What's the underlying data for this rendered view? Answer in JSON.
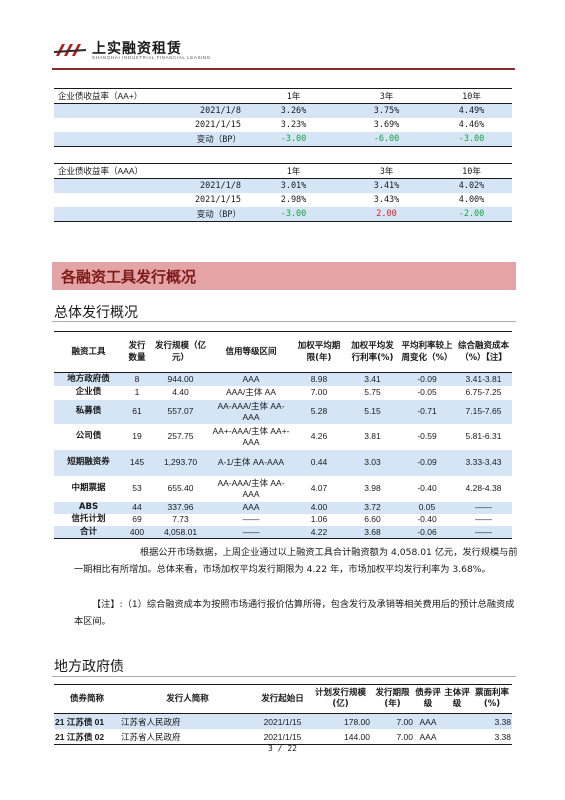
{
  "header": {
    "company_cn": "上实融资租赁",
    "company_en": "SHANGHAI INDUSTRIAL FINANCIAL LEASING"
  },
  "yield_tables": [
    {
      "label": "企业债收益率（AA+）",
      "tenors": [
        "1年",
        "3年",
        "10年"
      ],
      "rows": [
        {
          "date": "2021/1/8",
          "values": [
            "3.26%",
            "3.75%",
            "4.49%"
          ]
        },
        {
          "date": "2021/1/15",
          "values": [
            "3.23%",
            "3.69%",
            "4.46%"
          ]
        }
      ],
      "change": {
        "label": "变动（BP）",
        "values": [
          "-3.00",
          "-6.00",
          "-3.00"
        ],
        "colors": [
          "#12a33a",
          "#12a33a",
          "#12a33a"
        ]
      }
    },
    {
      "label": "企业债收益率（AAA）",
      "tenors": [
        "1年",
        "3年",
        "10年"
      ],
      "rows": [
        {
          "date": "2021/1/8",
          "values": [
            "3.01%",
            "3.41%",
            "4.02%"
          ]
        },
        {
          "date": "2021/1/15",
          "values": [
            "2.98%",
            "3.43%",
            "4.00%"
          ]
        }
      ],
      "change": {
        "label": "变动（BP）",
        "values": [
          "-3.00",
          "2.00",
          "-2.00"
        ],
        "colors": [
          "#12a33a",
          "#e01a1a",
          "#12a33a"
        ]
      }
    }
  ],
  "section_title": "各融资工具发行概况",
  "overview": {
    "title": "总体发行概况",
    "headers": [
      "融资工具",
      "发行数量",
      "发行规模（亿元）",
      "信用等级区间",
      "加权平均期限(年)",
      "加权平均发行利率(%)",
      "平均利率较上周变化（%）",
      "综合融资成本（%）【注】"
    ],
    "rows": [
      {
        "name": "地方政府债",
        "count": "8",
        "size": "944.00",
        "rating": "AAA",
        "term": "8.98",
        "rate": "3.41",
        "change": "-0.09",
        "cost": "3.41-3.81"
      },
      {
        "name": "企业债",
        "count": "1",
        "size": "4.40",
        "rating": "AAA/主体 AA",
        "term": "7.00",
        "rate": "5.75",
        "change": "-0.05",
        "cost": "6.75-7.25"
      },
      {
        "name": "私募债",
        "count": "61",
        "size": "557.07",
        "rating": "AA-AAA/主体 AA-AAA",
        "term": "5.28",
        "rate": "5.15",
        "change": "-0.71",
        "cost": "7.15-7.65"
      },
      {
        "name": "公司债",
        "count": "19",
        "size": "257.75",
        "rating": "AA+-AAA/主体 AA+-AAA",
        "term": "4.26",
        "rate": "3.81",
        "change": "-0.59",
        "cost": "5.81-6.31"
      },
      {
        "name": "短期融资券",
        "count": "145",
        "size": "1,293.70",
        "rating": "A-1/主体 AA-AAA",
        "term": "0.44",
        "rate": "3.03",
        "change": "-0.09",
        "cost": "3.33-3.43"
      },
      {
        "name": "中期票据",
        "count": "53",
        "size": "655.40",
        "rating": "AA-AAA/主体 AA-AAA",
        "term": "4.07",
        "rate": "3.98",
        "change": "-0.40",
        "cost": "4.28-4.38"
      },
      {
        "name": "ABS",
        "count": "44",
        "size": "337.96",
        "rating": "AAA",
        "term": "4.00",
        "rate": "3.72",
        "change": "0.05",
        "cost": "——"
      },
      {
        "name": "信托计划",
        "count": "69",
        "size": "7.73",
        "rating": "——",
        "term": "1.06",
        "rate": "6.60",
        "change": "-0.40",
        "cost": "——"
      },
      {
        "name": "合计",
        "count": "400",
        "size": "4,058.01",
        "rating": "——",
        "term": "4.22",
        "rate": "3.68",
        "change": "-0.06",
        "cost": "——"
      }
    ],
    "paragraph": "根据公开市场数据，上周企业通过以上融资工具合计融资额为 4,058.01 亿元，发行规模与前一期相比有所增加。总体来看，市场加权平均发行期限为 4.22 年，市场加权平均发行利率为 3.68%。",
    "note": "【注】:（1）综合融资成本为按照市场通行报价估算所得，包含发行及承销等相关费用后的预计总融资成本区间。"
  },
  "local_gov": {
    "title": "地方政府债",
    "headers": [
      "债券简称",
      "发行人简称",
      "发行起始日",
      "计划发行规模(亿)",
      "发行期限(年)",
      "债券评级",
      "主体评级",
      "票面利率(%)"
    ],
    "rows": [
      {
        "name": "21 江苏债 01",
        "issuer": "江苏省人民政府",
        "date": "2021/1/15",
        "size": "178.00",
        "term": "7.00",
        "rating": "AAA",
        "entity": "",
        "coupon": "3.38"
      },
      {
        "name": "21 江苏债 02",
        "issuer": "江苏省人民政府",
        "date": "2021/1/15",
        "size": "144.00",
        "term": "7.00",
        "rating": "AAA",
        "entity": "",
        "coupon": "3.38"
      }
    ]
  },
  "page": "3 / 22"
}
